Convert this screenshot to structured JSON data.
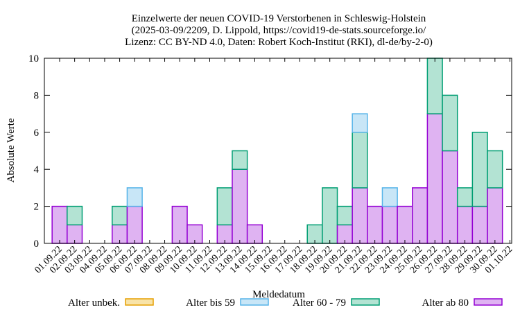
{
  "chart_data": {
    "type": "bar",
    "stacked": true,
    "title_lines": [
      "Einzelwerte der neuen COVID-19 Verstorbenen in Schleswig-Holstein",
      "(2025-03-09/2209, D. Lippold, https://covid19-de-stats.sourceforge.io/",
      "Lizenz: CC BY-ND 4.0, Daten: Robert Koch-Institut (RKI), dl-de/by-2-0)"
    ],
    "xlabel": "Meldedatum",
    "ylabel": "Absolute Werte",
    "ylim": [
      0,
      10
    ],
    "yticks": [
      0,
      2,
      4,
      6,
      8,
      10
    ],
    "grid": false,
    "legend_position": "bottom",
    "categories": [
      "01.09.22",
      "02.09.22",
      "03.09.22",
      "04.09.22",
      "05.09.22",
      "06.09.22",
      "07.09.22",
      "08.09.22",
      "09.09.22",
      "10.09.22",
      "11.09.22",
      "12.09.22",
      "13.09.22",
      "14.09.22",
      "15.09.22",
      "16.09.22",
      "17.09.22",
      "18.09.22",
      "19.09.22",
      "20.09.22",
      "21.09.22",
      "22.09.22",
      "23.09.22",
      "24.09.22",
      "25.09.22",
      "26.09.22",
      "27.09.22",
      "28.09.22",
      "29.09.22",
      "30.09.22",
      "01.10.22"
    ],
    "series": [
      {
        "name": "Alter ab 80",
        "fill": "#dfb3f2",
        "stroke": "#9400d3",
        "values": [
          2,
          1,
          0,
          0,
          1,
          2,
          0,
          0,
          2,
          1,
          0,
          1,
          4,
          1,
          0,
          0,
          0,
          0,
          0,
          1,
          3,
          2,
          2,
          2,
          3,
          7,
          5,
          2,
          2,
          3,
          0
        ]
      },
      {
        "name": "Alter 60 - 79",
        "fill": "#b3e3d3",
        "stroke": "#009e73",
        "values": [
          0,
          1,
          0,
          0,
          1,
          0,
          0,
          0,
          0,
          0,
          0,
          2,
          1,
          0,
          0,
          0,
          0,
          1,
          3,
          1,
          3,
          0,
          0,
          0,
          0,
          3,
          3,
          1,
          4,
          2,
          0
        ]
      },
      {
        "name": "Alter bis 59",
        "fill": "#c8e6f7",
        "stroke": "#56b4e9",
        "values": [
          0,
          0,
          0,
          0,
          0,
          1,
          0,
          0,
          0,
          0,
          0,
          0,
          0,
          0,
          0,
          0,
          0,
          0,
          0,
          0,
          1,
          0,
          1,
          0,
          0,
          0,
          0,
          0,
          0,
          0,
          0
        ]
      },
      {
        "name": "Alter unbek.",
        "fill": "#f8e3a8",
        "stroke": "#e69f00",
        "values": [
          0,
          0,
          0,
          0,
          0,
          0,
          0,
          0,
          0,
          0,
          0,
          0,
          0,
          0,
          0,
          0,
          0,
          0,
          0,
          0,
          0,
          0,
          0,
          0,
          0,
          0,
          0,
          0,
          0,
          0,
          0
        ]
      }
    ],
    "legend": [
      "Alter unbek.",
      "Alter bis 59",
      "Alter 60 - 79",
      "Alter ab 80"
    ]
  }
}
